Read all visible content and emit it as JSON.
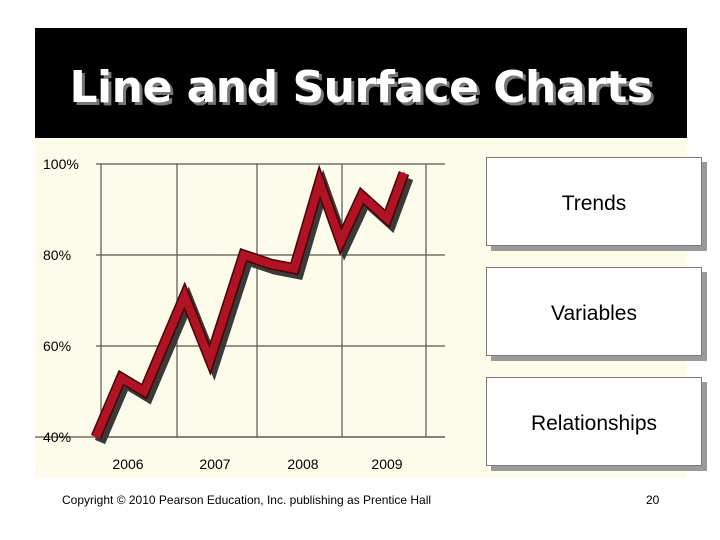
{
  "slide": {
    "title": "Line and Surface Charts",
    "copyright": "Copyright © 2010 Pearson Education, Inc. publishing as Prentice Hall",
    "page_number": "20"
  },
  "side_boxes": [
    {
      "label": "Trends"
    },
    {
      "label": "Variables"
    },
    {
      "label": "Relationships"
    }
  ],
  "colors": {
    "title_background": "#000000",
    "panel_background": "#fdfbea",
    "line_color": "#b01324",
    "line_shadow": "#3a3a3a"
  },
  "chart_data": {
    "type": "line",
    "title": "",
    "xlabel": "",
    "ylabel": "",
    "x_ticks": [
      "2006",
      "2007",
      "2008",
      "2009"
    ],
    "y_ticks": [
      "100%",
      "80%",
      "60%",
      "40%"
    ],
    "y_tick_values": [
      100,
      80,
      60,
      40
    ],
    "ylim": [
      40,
      100
    ],
    "xlim": [
      2005.65,
      2009.3
    ],
    "grid": true,
    "series": [
      {
        "x": [
          2005.65,
          2005.95,
          2006.22,
          2006.7,
          2007.0,
          2007.4,
          2007.72,
          2008.0,
          2008.3,
          2008.55,
          2008.8,
          2009.1,
          2009.3
        ],
        "y": [
          40,
          53,
          50,
          71,
          57,
          80,
          78,
          77,
          96,
          83,
          93,
          88,
          98
        ]
      }
    ]
  }
}
